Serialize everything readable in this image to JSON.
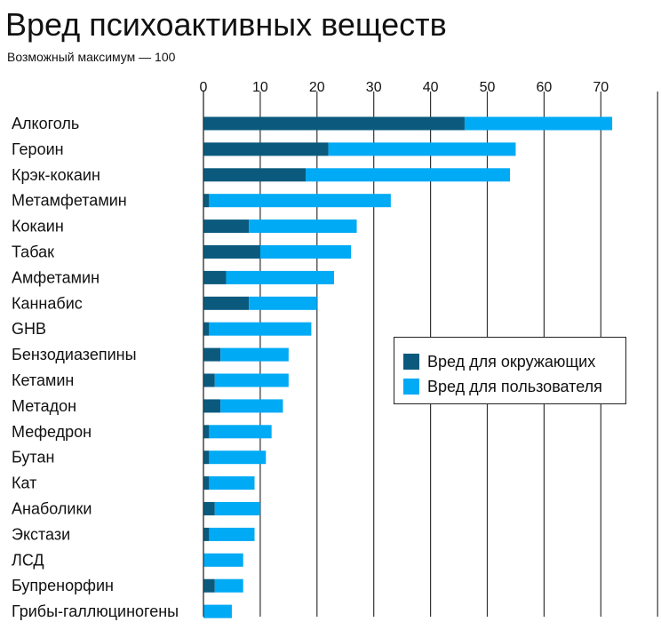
{
  "title": "Вред психоактивных веществ",
  "subtitle": "Возможный максимум — 100",
  "colors": {
    "others": "#0b5a7e",
    "user": "#00aaf5",
    "axis": "#333333",
    "text": "#111111"
  },
  "legend": {
    "others_label": "Вред для окружающих",
    "user_label": "Вред для пользователя"
  },
  "chart_data": {
    "type": "bar",
    "orientation": "horizontal",
    "stacked": true,
    "title": "Вред психоактивных веществ",
    "subtitle": "Возможный максимум — 100",
    "xlabel": "",
    "ylabel": "",
    "xlim": [
      0,
      80
    ],
    "xticks": [
      0,
      10,
      20,
      30,
      40,
      50,
      60,
      70
    ],
    "legend_position": "middle-right",
    "categories": [
      "Алкоголь",
      "Героин",
      "Крэк-кокаин",
      "Метамфетамин",
      "Кокаин",
      "Табак",
      "Амфетамин",
      "Каннабис",
      "GHB",
      "Бензодиазепины",
      "Кетамин",
      "Метадон",
      "Мефедрон",
      "Бутан",
      "Кат",
      "Анаболики",
      "Экстази",
      "ЛСД",
      "Бупренорфин",
      "Грибы-галлюциногены"
    ],
    "series": [
      {
        "name": "Вред для окружающих",
        "values": [
          46,
          22,
          18,
          1,
          8,
          10,
          4,
          8,
          1,
          3,
          2,
          3,
          1,
          1,
          1,
          2,
          1,
          0,
          2,
          0
        ]
      },
      {
        "name": "Вред для пользователя",
        "values": [
          26,
          33,
          36,
          32,
          19,
          16,
          19,
          12,
          18,
          12,
          13,
          11,
          11,
          10,
          8,
          8,
          8,
          7,
          5,
          5
        ]
      }
    ]
  }
}
